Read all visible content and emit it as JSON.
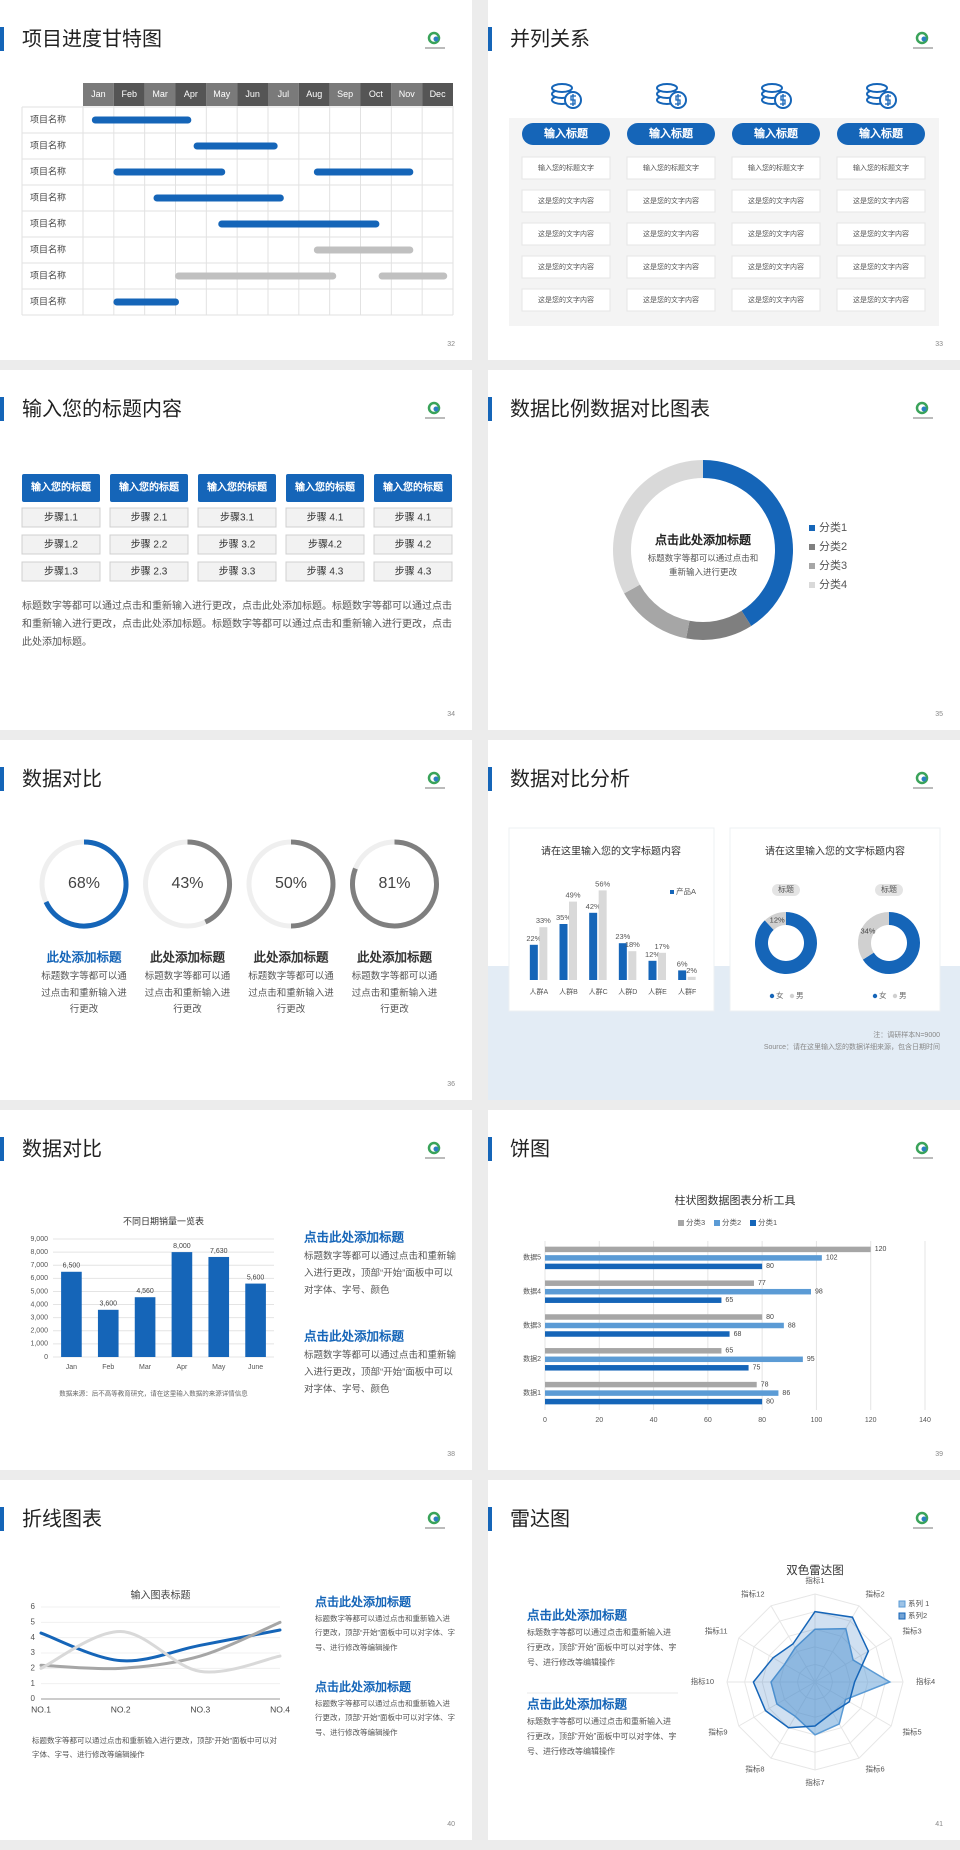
{
  "slides": [
    {
      "type": "gantt",
      "title": "项目进度甘特图",
      "page": "32",
      "months": [
        "Jan",
        "Feb",
        "Mar",
        "Apr",
        "May",
        "Jun",
        "Jul",
        "Aug",
        "Sep",
        "Oct",
        "Nov",
        "Dec"
      ],
      "rows": [
        {
          "label": "项目名称",
          "bars": [
            {
              "start": 0.4,
              "end": 3.4,
              "color": "#1565b8"
            }
          ]
        },
        {
          "label": "项目名称",
          "bars": [
            {
              "start": 3.7,
              "end": 6.2,
              "color": "#1565b8"
            }
          ]
        },
        {
          "label": "项目名称",
          "bars": [
            {
              "start": 1.1,
              "end": 4.5,
              "color": "#1565b8"
            },
            {
              "start": 7.6,
              "end": 10.6,
              "color": "#1565b8"
            }
          ]
        },
        {
          "label": "项目名称",
          "bars": [
            {
              "start": 2.4,
              "end": 6.4,
              "color": "#1565b8"
            }
          ]
        },
        {
          "label": "项目名称",
          "bars": [
            {
              "start": 4.5,
              "end": 9.5,
              "color": "#1565b8"
            }
          ]
        },
        {
          "label": "项目名称",
          "bars": [
            {
              "start": 7.6,
              "end": 10.6,
              "color": "#c0c0c0"
            }
          ]
        },
        {
          "label": "项目名称",
          "bars": [
            {
              "start": 3.1,
              "end": 8.1,
              "color": "#c0c0c0"
            },
            {
              "start": 9.7,
              "end": 11.7,
              "color": "#c0c0c0"
            }
          ]
        },
        {
          "label": "项目名称",
          "bars": [
            {
              "start": 1.1,
              "end": 3.0,
              "color": "#1565b8"
            }
          ]
        }
      ]
    },
    {
      "type": "columns",
      "title": "并列关系",
      "page": "33",
      "columns": [
        {
          "header": "输入标题",
          "items": [
            "输入您的标题文字",
            "这是您的文字内容",
            "这是您的文字内容",
            "这是您的文字内容",
            "这是您的文字内容"
          ]
        },
        {
          "header": "输入标题",
          "items": [
            "输入您的标题文字",
            "这是您的文字内容",
            "这是您的文字内容",
            "这是您的文字内容",
            "这是您的文字内容"
          ]
        },
        {
          "header": "输入标题",
          "items": [
            "输入您的标题文字",
            "这是您的文字内容",
            "这是您的文字内容",
            "这是您的文字内容",
            "这是您的文字内容"
          ]
        },
        {
          "header": "输入标题",
          "items": [
            "输入您的标题文字",
            "这是您的文字内容",
            "这是您的文字内容",
            "这是您的文字内容",
            "这是您的文字内容"
          ]
        }
      ]
    },
    {
      "type": "steps",
      "title": "输入您的标题内容",
      "page": "34",
      "columns": [
        {
          "header": "输入您的标题",
          "steps": [
            "步骤1.1",
            "步骤1.2",
            "步骤1.3"
          ]
        },
        {
          "header": "输入您的标题",
          "steps": [
            "步骤 2.1",
            "步骤 2.2",
            "步骤 2.3"
          ]
        },
        {
          "header": "输入您的标题",
          "steps": [
            "步骤3.1",
            "步骤 3.2",
            "步骤 3.3"
          ]
        },
        {
          "header": "输入您的标题",
          "steps": [
            "步骤 4.1",
            "步骤4.2",
            "步骤 4.3"
          ]
        },
        {
          "header": "输入您的标题",
          "steps": [
            "步骤 4.1",
            "步骤 4.2",
            "步骤 4.3"
          ]
        }
      ],
      "paragraph": "标题数字等都可以通过点击和重新输入进行更改，点击此处添加标题。标题数字等都可以通过点击和重新输入进行更改，点击此处添加标题。标题数字等都可以通过点击和重新输入进行更改，点击此处添加标题。"
    },
    {
      "type": "pie",
      "title": "数据比例数据对比图表",
      "page": "35",
      "center_title": "点击此处添加标题",
      "center_text": "标题数字等都可以通过点击和重新输入进行更改",
      "categories": [
        "分类1",
        "分类2",
        "分类3",
        "分类4"
      ],
      "values": [
        41,
        12,
        14,
        33
      ],
      "colors": [
        "#1565b8",
        "#7f7f7f",
        "#a6a6a6",
        "#d9d9d9"
      ]
    },
    {
      "type": "rings",
      "title": "数据对比",
      "page": "36",
      "items": [
        {
          "value": 68,
          "value_label": "68%",
          "color": "#1565b8",
          "heading": "此处添加标题",
          "text": "标题数字等都可以通过点击和重新输入进行更改"
        },
        {
          "value": 43,
          "value_label": "43%",
          "color": "#7f7f7f",
          "heading": "此处添加标题",
          "text": "标题数字等都可以通过点击和重新输入进行更改"
        },
        {
          "value": 50,
          "value_label": "50%",
          "color": "#7f7f7f",
          "heading": "此处添加标题",
          "text": "标题数字等都可以通过点击和重新输入进行更改"
        },
        {
          "value": 81,
          "value_label": "81%",
          "color": "#7f7f7f",
          "heading": "此处添加标题",
          "text": "标题数字等都可以通过点击和重新输入进行更改"
        }
      ]
    },
    {
      "type": "comparison",
      "title": "数据对比分析",
      "page": "37",
      "bar_card": {
        "title": "请在这里输入您的文字标题内容",
        "categories": [
          "人群A",
          "人群B",
          "人群C",
          "人群D",
          "人群E",
          "人群F"
        ],
        "ylim": [
          0,
          60
        ],
        "series": [
          {
            "name": "产品A",
            "color": "#1565b8",
            "values": [
              22,
              35,
              42,
              23,
              12,
              6
            ],
            "value_labels": [
              "22%",
              "35%",
              "42%",
              "23%",
              "12%",
              "6%"
            ]
          },
          {
            "color": "#d9d9d9",
            "values": [
              33,
              49,
              56,
              18,
              17,
              2
            ],
            "value_labels": [
              "33%",
              "49%",
              "56%",
              "18%",
              "17%",
              "2%"
            ]
          }
        ]
      },
      "donut_card": {
        "title": "请在这里输入您的文字标题内容",
        "categories": [
          "女",
          "男"
        ],
        "colors": [
          "#1565b8",
          "#d0d0d0"
        ],
        "donuts": [
          {
            "tag": "标题",
            "values": [
              88,
              12
            ],
            "value_labels": [
              null,
              "12%"
            ]
          },
          {
            "tag": "标题",
            "values": [
              66,
              34
            ],
            "value_labels": [
              null,
              "34%"
            ]
          }
        ]
      },
      "note": "注：调研样本N=9000",
      "source": "Source：请在这里输入您的数据详细来源，包含日期时间"
    },
    {
      "type": "bar",
      "title": "数据对比",
      "page": "38",
      "chart": {
        "title": "不同日期销量一览表",
        "categories": [
          "Jan",
          "Feb",
          "Mar",
          "Apr",
          "May",
          "June"
        ],
        "values": [
          6500,
          3600,
          4560,
          8000,
          7630,
          5600
        ],
        "value_labels": [
          "6,500",
          "3,600",
          "4,560",
          "8,000",
          "7,630",
          "5,600"
        ],
        "color": "#1565b8",
        "ylim": [
          0,
          9000
        ],
        "yticks": [
          0,
          {
            "value": 1000,
            "label": "1,000"
          },
          {
            "value": 2000,
            "label": "2,000"
          },
          {
            "value": 3000,
            "label": "3,000"
          },
          {
            "value": 4000,
            "label": "4,000"
          },
          {
            "value": 5000,
            "label": "5,000"
          },
          {
            "value": 6000,
            "label": "6,000"
          },
          {
            "value": 7000,
            "label": "7,000"
          },
          {
            "value": 8000,
            "label": "8,000"
          },
          {
            "value": 9000,
            "label": "9,000"
          }
        ],
        "grid": true,
        "source": "数据来源：后不高等教育研究，请在这里输入数据的来源详情信息"
      },
      "blocks": [
        {
          "heading": "点击此处添加标题",
          "text": "标题数字等都可以通过点击和重新输入进行更改，顶部“开始”面板中可以对字体、字号、颜色"
        },
        {
          "heading": "点击此处添加标题",
          "text": "标题数字等都可以通过点击和重新输入进行更改，顶部“开始”面板中可以对字体、字号、颜色"
        }
      ]
    },
    {
      "type": "hbar",
      "title": "饼图",
      "page": "39",
      "chart": {
        "title": "柱状图数据图表分析工具",
        "categories": [
          "数据5",
          "数据4",
          "数据3",
          "数据2",
          "数据1"
        ],
        "series": [
          {
            "name": "分类3",
            "color": "#a6a6a6",
            "values": [
              120,
              77,
              80,
              65,
              78
            ]
          },
          {
            "name": "分类2",
            "color": "#5b9bd5",
            "values": [
              102,
              98,
              88,
              95,
              86
            ]
          },
          {
            "name": "分类1",
            "color": "#1565b8",
            "values": [
              80,
              65,
              68,
              75,
              80
            ]
          }
        ],
        "xlim": [
          0,
          140
        ],
        "xticks": [
          0,
          20,
          40,
          60,
          80,
          100,
          120,
          140
        ],
        "grid": true
      }
    },
    {
      "type": "line",
      "title": "折线图表",
      "page": "40",
      "chart": {
        "title": "输入图表标题",
        "categories": [
          "NO.1",
          "NO.2",
          "NO.3",
          "NO.4"
        ],
        "series": [
          {
            "color": "#1565b8",
            "values": [
              4.3,
              2.5,
              3.5,
              4.5
            ]
          },
          {
            "color": "#a6a6a6",
            "values": [
              2.2,
              2.0,
              2.8,
              5.0
            ]
          },
          {
            "color": "#d9d9d9",
            "values": [
              2.0,
              4.4,
              1.8,
              2.8
            ]
          }
        ],
        "ylim": [
          0,
          6
        ],
        "yticks": [
          0,
          1,
          2,
          3,
          4,
          5,
          6
        ],
        "smooth": true
      },
      "blocks": [
        {
          "heading": "点击此处添加标题",
          "text": "标题数字等都可以通过点击和重新输入进行更改，顶部“开始”面板中可以对字体、字号、进行修改等编辑操作"
        },
        {
          "heading": "点击此处添加标题",
          "text": "标题数字等都可以通过点击和重新输入进行更改，顶部“开始”面板中可以对字体、字号、进行修改等编辑操作"
        }
      ],
      "footer": "标题数字等都可以通过点击和重新输入进行更改，顶部“开始”面板中可以对字体、字号、进行修改等编辑操作"
    },
    {
      "type": "radar",
      "title": "雷达图",
      "page": "41",
      "chart": {
        "title": "双色雷达图",
        "categories": [
          "指标1",
          "指标2",
          "指标3",
          "指标4",
          "指标5",
          "指标6",
          "指标7",
          "指标8",
          "指标9",
          "指标10",
          "指标11",
          "指标12"
        ],
        "rlim": [
          0,
          100
        ],
        "series": [
          {
            "name": "系列 1",
            "color": "#5b9bd5",
            "values": [
              60,
              70,
              50,
              85,
              40,
              55,
              60,
              45,
              50,
              50,
              40,
              45
            ]
          },
          {
            "name": "系列2",
            "color": "#1565b8",
            "values": [
              80,
              85,
              70,
              45,
              45,
              40,
              50,
              60,
              65,
              70,
              55,
              50
            ]
          }
        ]
      },
      "blocks": [
        {
          "heading": "点击此处添加标题",
          "text": "标题数字等都可以通过点击和重新输入进行更改，顶部“开始”面板中可以对字体、字号、进行修改等编辑操作"
        },
        {
          "heading": "点击此处添加标题",
          "text": "标题数字等都可以通过点击和重新输入进行更改，顶部“开始”面板中可以对字体、字号、进行修改等编辑操作"
        }
      ]
    }
  ]
}
